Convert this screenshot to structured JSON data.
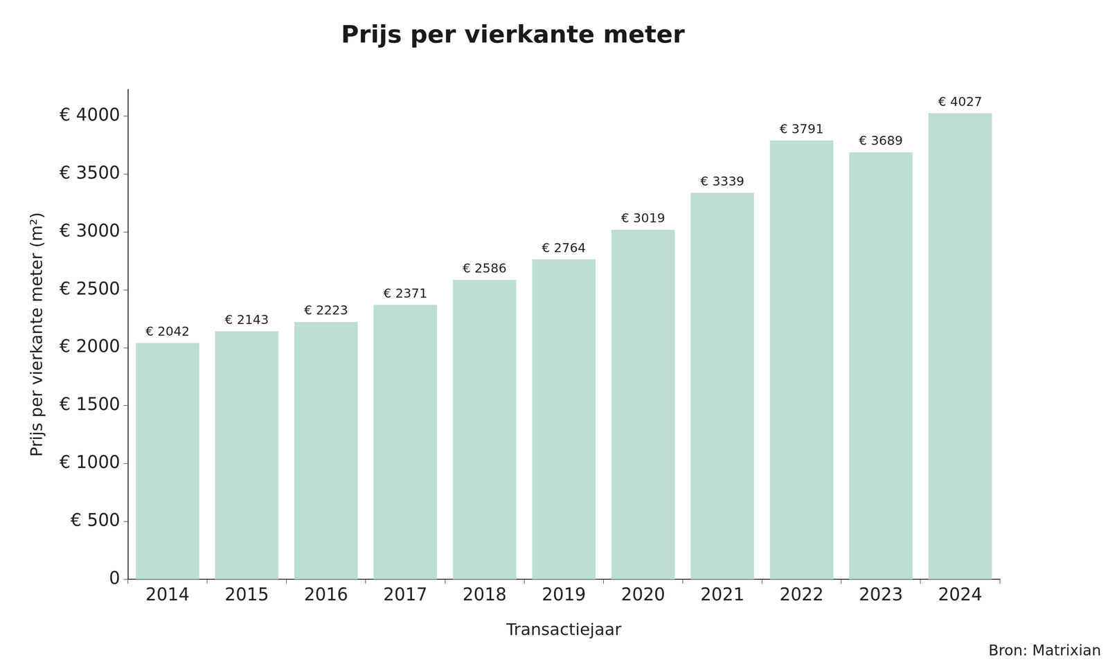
{
  "chart_data": {
    "type": "bar",
    "title": "Prijs per vierkante meter",
    "x_label": "Transactiejaar",
    "y_label": "Prijs per vierkante meter (m²)",
    "source": "Bron: Matrixian",
    "categories": [
      "2014",
      "2015",
      "2016",
      "2017",
      "2018",
      "2019",
      "2020",
      "2021",
      "2022",
      "2023",
      "2024"
    ],
    "values": [
      2042,
      2143,
      2223,
      2371,
      2586,
      2764,
      3019,
      3339,
      3791,
      3689,
      4027
    ],
    "value_labels": [
      "€ 2042",
      "€ 2143",
      "€ 2223",
      "€ 2371",
      "€ 2586",
      "€ 2764",
      "€ 3019",
      "€ 3339",
      "€ 3791",
      "€ 3689",
      "€ 4027"
    ],
    "data_labels": true,
    "color": "#bcded3",
    "ylim": [
      0,
      4230
    ],
    "yticks": [
      0,
      {
        "value": 500,
        "label": "€ 500"
      },
      {
        "value": 1000,
        "label": "€ 1000"
      },
      {
        "value": 1500,
        "label": "€ 1500"
      },
      {
        "value": 2000,
        "label": "€ 2000"
      },
      {
        "value": 2500,
        "label": "€ 2500"
      },
      {
        "value": 3000,
        "label": "€ 3000"
      },
      {
        "value": 3500,
        "label": "€ 3500"
      },
      {
        "value": 4000,
        "label": "€ 4000"
      }
    ],
    "grid": false
  }
}
